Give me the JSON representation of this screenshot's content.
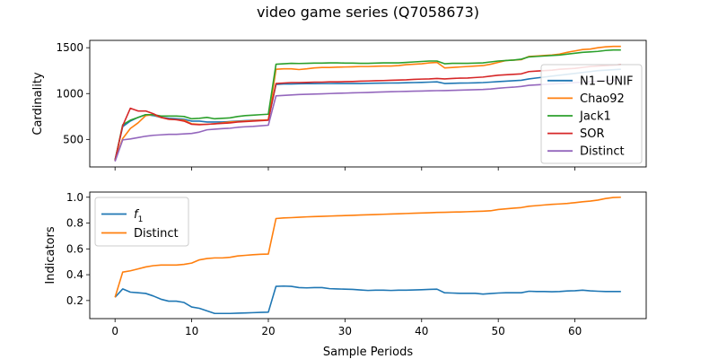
{
  "figure": {
    "suptitle": "video game series (Q7058673)",
    "xlabel": "Sample Periods"
  },
  "chart_data": [
    {
      "type": "line",
      "ylabel": "Cardinality",
      "xlim": [
        -3.3,
        69.3
      ],
      "ylim": [
        200,
        1580
      ],
      "xticks": [
        0,
        10,
        20,
        30,
        40,
        50,
        60
      ],
      "yticks": [
        500,
        1000,
        1500
      ],
      "show_xtick_labels": false,
      "grid": false,
      "legend_position": "center-right",
      "series": [
        {
          "name": "N1−UNIF",
          "color": "#1f77b4",
          "x": [
            0,
            1,
            2,
            3,
            4,
            5,
            6,
            7,
            8,
            9,
            10,
            11,
            12,
            13,
            14,
            15,
            16,
            17,
            18,
            19,
            20,
            21,
            22,
            23,
            24,
            25,
            26,
            27,
            28,
            29,
            30,
            31,
            32,
            33,
            34,
            35,
            36,
            37,
            38,
            39,
            40,
            41,
            42,
            43,
            44,
            45,
            46,
            47,
            48,
            49,
            50,
            51,
            52,
            53,
            54,
            55,
            56,
            57,
            58,
            59,
            60,
            61,
            62,
            63,
            64,
            65,
            66
          ],
          "y": [
            280,
            640,
            700,
            740,
            770,
            760,
            740,
            730,
            725,
            720,
            700,
            700,
            690,
            690,
            690,
            695,
            700,
            705,
            708,
            710,
            712,
            1100,
            1105,
            1105,
            1107,
            1108,
            1108,
            1109,
            1109,
            1110,
            1110,
            1110,
            1110,
            1112,
            1113,
            1114,
            1115,
            1116,
            1118,
            1120,
            1122,
            1125,
            1128,
            1110,
            1112,
            1114,
            1115,
            1117,
            1120,
            1125,
            1130,
            1135,
            1140,
            1145,
            1160,
            1170,
            1180,
            1190,
            1200,
            1210,
            1220,
            1230,
            1240,
            1250,
            1255,
            1260,
            1265
          ]
        },
        {
          "name": "Chao92",
          "color": "#ff7f0e",
          "x": [
            0,
            1,
            2,
            3,
            4,
            5,
            6,
            7,
            8,
            9,
            10,
            11,
            12,
            13,
            14,
            15,
            16,
            17,
            18,
            19,
            20,
            21,
            22,
            23,
            24,
            25,
            26,
            27,
            28,
            29,
            30,
            31,
            32,
            33,
            34,
            35,
            36,
            37,
            38,
            39,
            40,
            41,
            42,
            43,
            44,
            45,
            46,
            47,
            48,
            49,
            50,
            51,
            52,
            53,
            54,
            55,
            56,
            57,
            58,
            59,
            60,
            61,
            62,
            63,
            64,
            65,
            66
          ],
          "y": [
            270,
            510,
            620,
            680,
            760,
            770,
            740,
            720,
            715,
            710,
            670,
            665,
            665,
            670,
            680,
            690,
            695,
            700,
            705,
            710,
            715,
            1265,
            1270,
            1270,
            1262,
            1270,
            1280,
            1285,
            1285,
            1288,
            1290,
            1292,
            1295,
            1295,
            1298,
            1300,
            1300,
            1305,
            1315,
            1320,
            1325,
            1335,
            1340,
            1280,
            1285,
            1290,
            1295,
            1300,
            1305,
            1320,
            1340,
            1360,
            1365,
            1370,
            1405,
            1410,
            1415,
            1420,
            1430,
            1450,
            1465,
            1480,
            1485,
            1500,
            1510,
            1515,
            1515
          ]
        },
        {
          "name": "Jack1",
          "color": "#2ca02c",
          "x": [
            0,
            1,
            2,
            3,
            4,
            5,
            6,
            7,
            8,
            9,
            10,
            11,
            12,
            13,
            14,
            15,
            16,
            17,
            18,
            19,
            20,
            21,
            22,
            23,
            24,
            25,
            26,
            27,
            28,
            29,
            30,
            31,
            32,
            33,
            34,
            35,
            36,
            37,
            38,
            39,
            40,
            41,
            42,
            43,
            44,
            45,
            46,
            47,
            48,
            49,
            50,
            51,
            52,
            53,
            54,
            55,
            56,
            57,
            58,
            59,
            60,
            61,
            62,
            63,
            64,
            65,
            66
          ],
          "y": [
            270,
            660,
            710,
            740,
            770,
            770,
            755,
            755,
            755,
            750,
            725,
            730,
            740,
            725,
            730,
            735,
            750,
            760,
            765,
            770,
            775,
            1320,
            1325,
            1330,
            1328,
            1330,
            1332,
            1332,
            1335,
            1335,
            1332,
            1332,
            1330,
            1330,
            1332,
            1335,
            1335,
            1335,
            1340,
            1345,
            1350,
            1355,
            1355,
            1325,
            1330,
            1330,
            1330,
            1332,
            1335,
            1345,
            1355,
            1360,
            1365,
            1375,
            1400,
            1405,
            1410,
            1415,
            1420,
            1430,
            1440,
            1450,
            1455,
            1460,
            1470,
            1475,
            1475
          ]
        },
        {
          "name": "SOR",
          "color": "#d62728",
          "x": [
            0,
            1,
            2,
            3,
            4,
            5,
            6,
            7,
            8,
            9,
            10,
            11,
            12,
            13,
            14,
            15,
            16,
            17,
            18,
            19,
            20,
            21,
            22,
            23,
            24,
            25,
            26,
            27,
            28,
            29,
            30,
            31,
            32,
            33,
            34,
            35,
            36,
            37,
            38,
            39,
            40,
            41,
            42,
            43,
            44,
            45,
            46,
            47,
            48,
            49,
            50,
            51,
            52,
            53,
            54,
            55,
            56,
            57,
            58,
            59,
            60,
            61,
            62,
            63,
            64,
            65,
            66
          ],
          "y": [
            270,
            650,
            840,
            810,
            810,
            780,
            740,
            720,
            715,
            700,
            665,
            660,
            665,
            670,
            675,
            680,
            690,
            695,
            700,
            705,
            710,
            1110,
            1115,
            1120,
            1120,
            1122,
            1125,
            1125,
            1128,
            1128,
            1130,
            1132,
            1135,
            1137,
            1140,
            1142,
            1145,
            1148,
            1150,
            1155,
            1158,
            1160,
            1165,
            1160,
            1165,
            1168,
            1170,
            1175,
            1180,
            1190,
            1200,
            1205,
            1210,
            1215,
            1240,
            1245,
            1250,
            1255,
            1265,
            1270,
            1275,
            1285,
            1295,
            1300,
            1305,
            1310,
            1315
          ]
        },
        {
          "name": "Distinct",
          "color": "#9467bd",
          "x": [
            0,
            1,
            2,
            3,
            4,
            5,
            6,
            7,
            8,
            9,
            10,
            11,
            12,
            13,
            14,
            15,
            16,
            17,
            18,
            19,
            20,
            21,
            22,
            23,
            24,
            25,
            26,
            27,
            28,
            29,
            30,
            31,
            32,
            33,
            34,
            35,
            36,
            37,
            38,
            39,
            40,
            41,
            42,
            43,
            44,
            45,
            46,
            47,
            48,
            49,
            50,
            51,
            52,
            53,
            54,
            55,
            56,
            57,
            58,
            59,
            60,
            61,
            62,
            63,
            64,
            65,
            66
          ],
          "y": [
            260,
            495,
            505,
            520,
            535,
            545,
            550,
            555,
            555,
            560,
            565,
            580,
            605,
            612,
            618,
            622,
            632,
            638,
            642,
            648,
            655,
            975,
            980,
            985,
            990,
            992,
            995,
            997,
            1000,
            1003,
            1005,
            1008,
            1010,
            1012,
            1015,
            1018,
            1020,
            1022,
            1024,
            1026,
            1028,
            1030,
            1032,
            1033,
            1035,
            1037,
            1040,
            1042,
            1045,
            1050,
            1058,
            1065,
            1070,
            1078,
            1090,
            1095,
            1100,
            1105,
            1110,
            1115,
            1120,
            1125,
            1130,
            1135,
            1140,
            1145,
            1150
          ]
        }
      ]
    },
    {
      "type": "line",
      "ylabel": "Indicators",
      "xlim": [
        -3.3,
        69.3
      ],
      "ylim": [
        0.06,
        1.04
      ],
      "xticks": [
        0,
        10,
        20,
        30,
        40,
        50,
        60
      ],
      "yticks": [
        0.2,
        0.4,
        0.6,
        0.8,
        1.0
      ],
      "show_xtick_labels": true,
      "grid": false,
      "legend_position": "upper-left",
      "series": [
        {
          "name": "f_1",
          "name_base": "f",
          "name_sub": "1",
          "color": "#1f77b4",
          "x": [
            0,
            1,
            2,
            3,
            4,
            5,
            6,
            7,
            8,
            9,
            10,
            11,
            12,
            13,
            14,
            15,
            16,
            17,
            18,
            19,
            20,
            21,
            22,
            23,
            24,
            25,
            26,
            27,
            28,
            29,
            30,
            31,
            32,
            33,
            34,
            35,
            36,
            37,
            38,
            39,
            40,
            41,
            42,
            43,
            44,
            45,
            46,
            47,
            48,
            49,
            50,
            51,
            52,
            53,
            54,
            55,
            56,
            57,
            58,
            59,
            60,
            61,
            62,
            63,
            64,
            65,
            66
          ],
          "y": [
            0.225,
            0.29,
            0.265,
            0.26,
            0.255,
            0.235,
            0.21,
            0.195,
            0.195,
            0.185,
            0.15,
            0.14,
            0.12,
            0.1,
            0.1,
            0.1,
            0.102,
            0.104,
            0.106,
            0.108,
            0.11,
            0.31,
            0.312,
            0.31,
            0.3,
            0.298,
            0.3,
            0.3,
            0.292,
            0.29,
            0.288,
            0.286,
            0.282,
            0.278,
            0.28,
            0.28,
            0.278,
            0.28,
            0.28,
            0.282,
            0.284,
            0.286,
            0.288,
            0.26,
            0.258,
            0.256,
            0.256,
            0.256,
            0.25,
            0.254,
            0.258,
            0.26,
            0.26,
            0.26,
            0.272,
            0.27,
            0.27,
            0.268,
            0.27,
            0.274,
            0.276,
            0.28,
            0.275,
            0.272,
            0.27,
            0.27,
            0.27
          ]
        },
        {
          "name": "Distinct",
          "color": "#ff7f0e",
          "x": [
            0,
            1,
            2,
            3,
            4,
            5,
            6,
            7,
            8,
            9,
            10,
            11,
            12,
            13,
            14,
            15,
            16,
            17,
            18,
            19,
            20,
            21,
            22,
            23,
            24,
            25,
            26,
            27,
            28,
            29,
            30,
            31,
            32,
            33,
            34,
            35,
            36,
            37,
            38,
            39,
            40,
            41,
            42,
            43,
            44,
            45,
            46,
            47,
            48,
            49,
            50,
            51,
            52,
            53,
            54,
            55,
            56,
            57,
            58,
            59,
            60,
            61,
            62,
            63,
            64,
            65,
            66
          ],
          "y": [
            0.225,
            0.42,
            0.43,
            0.445,
            0.46,
            0.47,
            0.475,
            0.475,
            0.475,
            0.48,
            0.49,
            0.515,
            0.525,
            0.53,
            0.53,
            0.535,
            0.545,
            0.55,
            0.555,
            0.558,
            0.56,
            0.835,
            0.84,
            0.842,
            0.845,
            0.848,
            0.85,
            0.852,
            0.854,
            0.856,
            0.858,
            0.86,
            0.862,
            0.864,
            0.866,
            0.868,
            0.87,
            0.872,
            0.874,
            0.876,
            0.878,
            0.88,
            0.882,
            0.883,
            0.885,
            0.886,
            0.888,
            0.89,
            0.892,
            0.895,
            0.905,
            0.91,
            0.915,
            0.92,
            0.93,
            0.935,
            0.94,
            0.945,
            0.948,
            0.952,
            0.958,
            0.965,
            0.97,
            0.978,
            0.99,
            0.998,
            1.0
          ]
        }
      ]
    }
  ]
}
